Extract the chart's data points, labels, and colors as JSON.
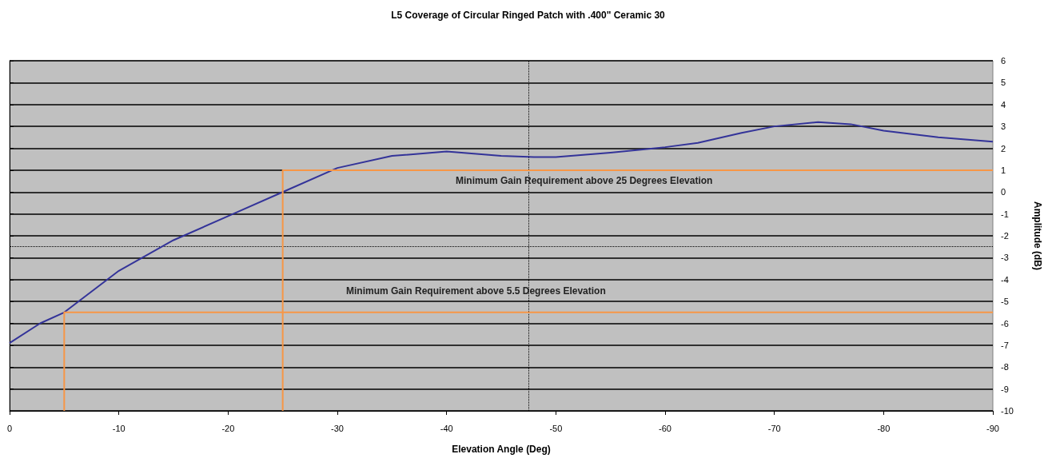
{
  "chart_data": {
    "type": "line",
    "title": "L5 Coverage of Circular Ringed Patch with .400\" Ceramic 30",
    "xlabel": "Elevation Angle (Deg)",
    "ylabel": "Amplitude (dB)",
    "xlim": [
      0,
      -90
    ],
    "xticks": [
      0,
      -10,
      -20,
      -30,
      -40,
      -50,
      -60,
      -70,
      -80,
      -90
    ],
    "ylim": [
      -10,
      6
    ],
    "yticks": [
      -10,
      -9,
      -8,
      -7,
      -6,
      -5,
      -4,
      -3,
      -2,
      -1,
      0,
      1,
      2,
      3,
      4,
      5,
      6
    ],
    "grid": "y",
    "marker": "none",
    "line_style": "solid",
    "series": [
      {
        "color": "#333399",
        "x": [
          0,
          -2.8,
          -5,
          -10,
          -15,
          -20,
          -25,
          -30,
          -35,
          -40,
          -45,
          -48,
          -50,
          -55,
          -60,
          -63,
          -67,
          -70,
          -74,
          -77,
          -80,
          -85,
          -90
        ],
        "values": [
          -6.9,
          -6.0,
          -5.5,
          -3.6,
          -2.2,
          -1.1,
          0,
          1.1,
          1.65,
          1.85,
          1.65,
          1.6,
          1.6,
          1.8,
          2.05,
          2.25,
          2.7,
          3.0,
          3.2,
          3.1,
          2.8,
          2.5,
          2.3
        ]
      },
      {
        "color": "#f79646",
        "x": [
          -25,
          -25,
          -90
        ],
        "values": [
          -10,
          1,
          1
        ]
      },
      {
        "color": "#f79646",
        "x": [
          -5,
          -5,
          -90
        ],
        "values": [
          -10,
          -5.5,
          -5.5
        ]
      }
    ],
    "ref_lines": [
      {
        "axis": "x",
        "value": -47.5,
        "color": "#000000",
        "line_style": "dotted"
      },
      {
        "axis": "y",
        "value": -2.5,
        "color": "#000000",
        "line_style": "dotted"
      }
    ],
    "annotations": [
      "Minimum Gain Requirement above 25 Degrees Elevation",
      "Minimum Gain Requirement above 5.5 Degrees Elevation"
    ]
  }
}
